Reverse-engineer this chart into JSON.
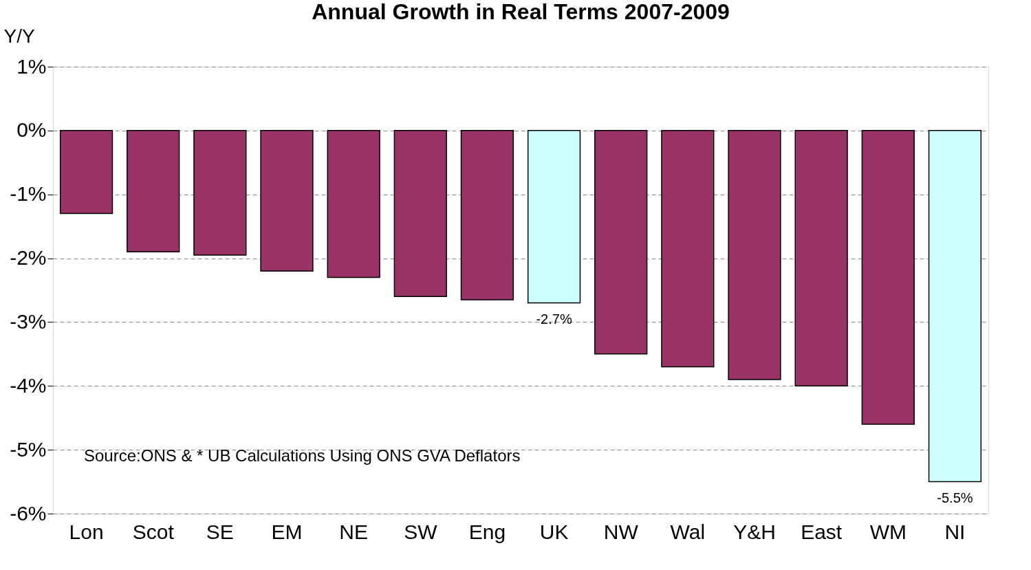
{
  "chart_data": {
    "type": "bar",
    "title": "Annual Growth in Real Terms 2007-2009",
    "ylabel": "Y/Y",
    "categories": [
      "Lon",
      "Scot",
      "SE",
      "EM",
      "NE",
      "SW",
      "Eng",
      "UK",
      "NW",
      "Wal",
      "Y&H",
      "East",
      "WM",
      "NI"
    ],
    "values": [
      -1.3,
      -1.9,
      -1.95,
      -2.2,
      -2.3,
      -2.6,
      -2.65,
      -2.7,
      -3.5,
      -3.7,
      -3.9,
      -4.0,
      -4.6,
      -5.5
    ],
    "colors": [
      "#993366",
      "#993366",
      "#993366",
      "#993366",
      "#993366",
      "#993366",
      "#993366",
      "#ccffff",
      "#993366",
      "#993366",
      "#993366",
      "#993366",
      "#993366",
      "#ccffff"
    ],
    "value_labels": [
      null,
      null,
      null,
      null,
      null,
      null,
      null,
      "-2.7%",
      null,
      null,
      null,
      null,
      null,
      "-5.5%"
    ],
    "ylim": [
      -6,
      1
    ],
    "yticks": [
      {
        "value": 1,
        "label": "1%"
      },
      {
        "value": 0,
        "label": "0%"
      },
      {
        "value": -1,
        "label": "-1%"
      },
      {
        "value": -2,
        "label": "-2%"
      },
      {
        "value": -3,
        "label": "-3%"
      },
      {
        "value": -4,
        "label": "-4%"
      },
      {
        "value": -5,
        "label": "-5%"
      },
      {
        "value": -6,
        "label": "-6%"
      }
    ],
    "grid": "y",
    "annotations": [
      "Source:ONS & * UB Calculations Using ONS GVA Deflators"
    ]
  }
}
